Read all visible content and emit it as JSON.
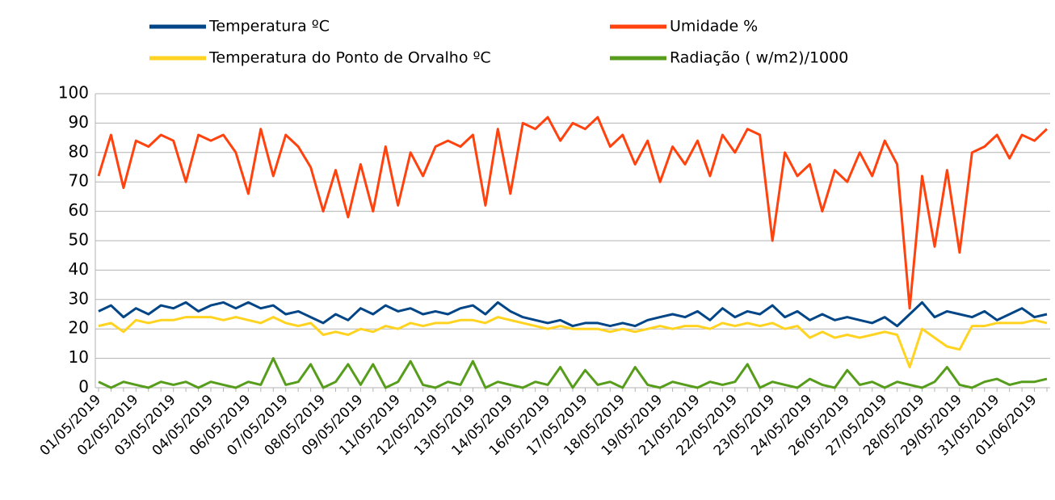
{
  "chart_data": {
    "type": "line",
    "categories": [
      "01/05/2019",
      null,
      null,
      "02/05/2019",
      null,
      null,
      "03/05/2019",
      null,
      null,
      "04/05/2019",
      null,
      null,
      "06/05/2019",
      null,
      null,
      "07/05/2019",
      null,
      null,
      "08/05/2019",
      null,
      null,
      "09/05/2019",
      null,
      null,
      "11/05/2019",
      null,
      null,
      "12/05/2019",
      null,
      null,
      "13/05/2019",
      null,
      null,
      "14/05/2019",
      null,
      null,
      "16/05/2019",
      null,
      null,
      "17/05/2019",
      null,
      null,
      "18/05/2019",
      null,
      null,
      "19/05/2019",
      null,
      null,
      "21/05/2019",
      null,
      null,
      "22/05/2019",
      null,
      null,
      "23/05/2019",
      null,
      null,
      "24/05/2019",
      null,
      null,
      "26/05/2019",
      null,
      null,
      "27/05/2019",
      null,
      null,
      "28/05/2019",
      null,
      null,
      "29/05/2019",
      null,
      null,
      "31/05/2019",
      null,
      null,
      "01/06/2019",
      null
    ],
    "series": [
      {
        "name": "Temperatura ºC",
        "color": "#004586",
        "values": [
          26,
          28,
          24,
          27,
          25,
          28,
          27,
          29,
          26,
          28,
          29,
          27,
          29,
          27,
          28,
          25,
          26,
          24,
          22,
          25,
          23,
          27,
          25,
          28,
          26,
          27,
          25,
          26,
          25,
          27,
          28,
          25,
          29,
          26,
          24,
          23,
          22,
          23,
          21,
          22,
          22,
          21,
          22,
          21,
          23,
          24,
          25,
          24,
          26,
          23,
          27,
          24,
          26,
          25,
          28,
          24,
          26,
          23,
          25,
          23,
          24,
          23,
          22,
          24,
          21,
          25,
          29,
          24,
          26,
          25,
          24,
          26,
          23,
          25,
          27,
          24,
          25
        ]
      },
      {
        "name": "Umidade %",
        "color": "#ff420e",
        "values": [
          72,
          86,
          68,
          84,
          82,
          86,
          84,
          70,
          86,
          84,
          86,
          80,
          66,
          88,
          72,
          86,
          82,
          75,
          60,
          74,
          58,
          76,
          60,
          82,
          62,
          80,
          72,
          82,
          84,
          82,
          86,
          62,
          88,
          66,
          90,
          88,
          92,
          84,
          90,
          88,
          92,
          82,
          86,
          76,
          84,
          70,
          82,
          76,
          84,
          72,
          86,
          80,
          88,
          86,
          50,
          80,
          72,
          76,
          60,
          74,
          70,
          80,
          72,
          84,
          76,
          27,
          72,
          48,
          74,
          46,
          80,
          82,
          86,
          78,
          86,
          84,
          88
        ]
      },
      {
        "name": "Temperatura do Ponto de Orvalho ºC",
        "color": "#ffd320",
        "values": [
          21,
          22,
          19,
          23,
          22,
          23,
          23,
          24,
          24,
          24,
          23,
          24,
          23,
          22,
          24,
          22,
          21,
          22,
          18,
          19,
          18,
          20,
          19,
          21,
          20,
          22,
          21,
          22,
          22,
          23,
          23,
          22,
          24,
          23,
          22,
          21,
          20,
          21,
          20,
          20,
          20,
          19,
          20,
          19,
          20,
          21,
          20,
          21,
          21,
          20,
          22,
          21,
          22,
          21,
          22,
          20,
          21,
          17,
          19,
          17,
          18,
          17,
          18,
          19,
          18,
          7,
          20,
          17,
          14,
          13,
          21,
          21,
          22,
          22,
          22,
          23,
          22
        ]
      },
      {
        "name": "Radiação ( w/m2)/1000",
        "color": "#579d1c",
        "values": [
          2,
          0,
          2,
          1,
          0,
          2,
          1,
          2,
          0,
          2,
          1,
          0,
          2,
          1,
          10,
          1,
          2,
          8,
          0,
          2,
          8,
          1,
          8,
          0,
          2,
          9,
          1,
          0,
          2,
          1,
          9,
          0,
          2,
          1,
          0,
          2,
          1,
          7,
          0,
          6,
          1,
          2,
          0,
          7,
          1,
          0,
          2,
          1,
          0,
          2,
          1,
          2,
          8,
          0,
          2,
          1,
          0,
          3,
          1,
          0,
          6,
          1,
          2,
          0,
          2,
          1,
          0,
          2,
          7,
          1,
          0,
          2,
          3,
          1,
          2,
          2,
          3
        ]
      }
    ],
    "ylim": [
      0,
      100
    ],
    "yticks": [
      0,
      10,
      20,
      30,
      40,
      50,
      60,
      70,
      80,
      90,
      100
    ],
    "grid": true
  }
}
